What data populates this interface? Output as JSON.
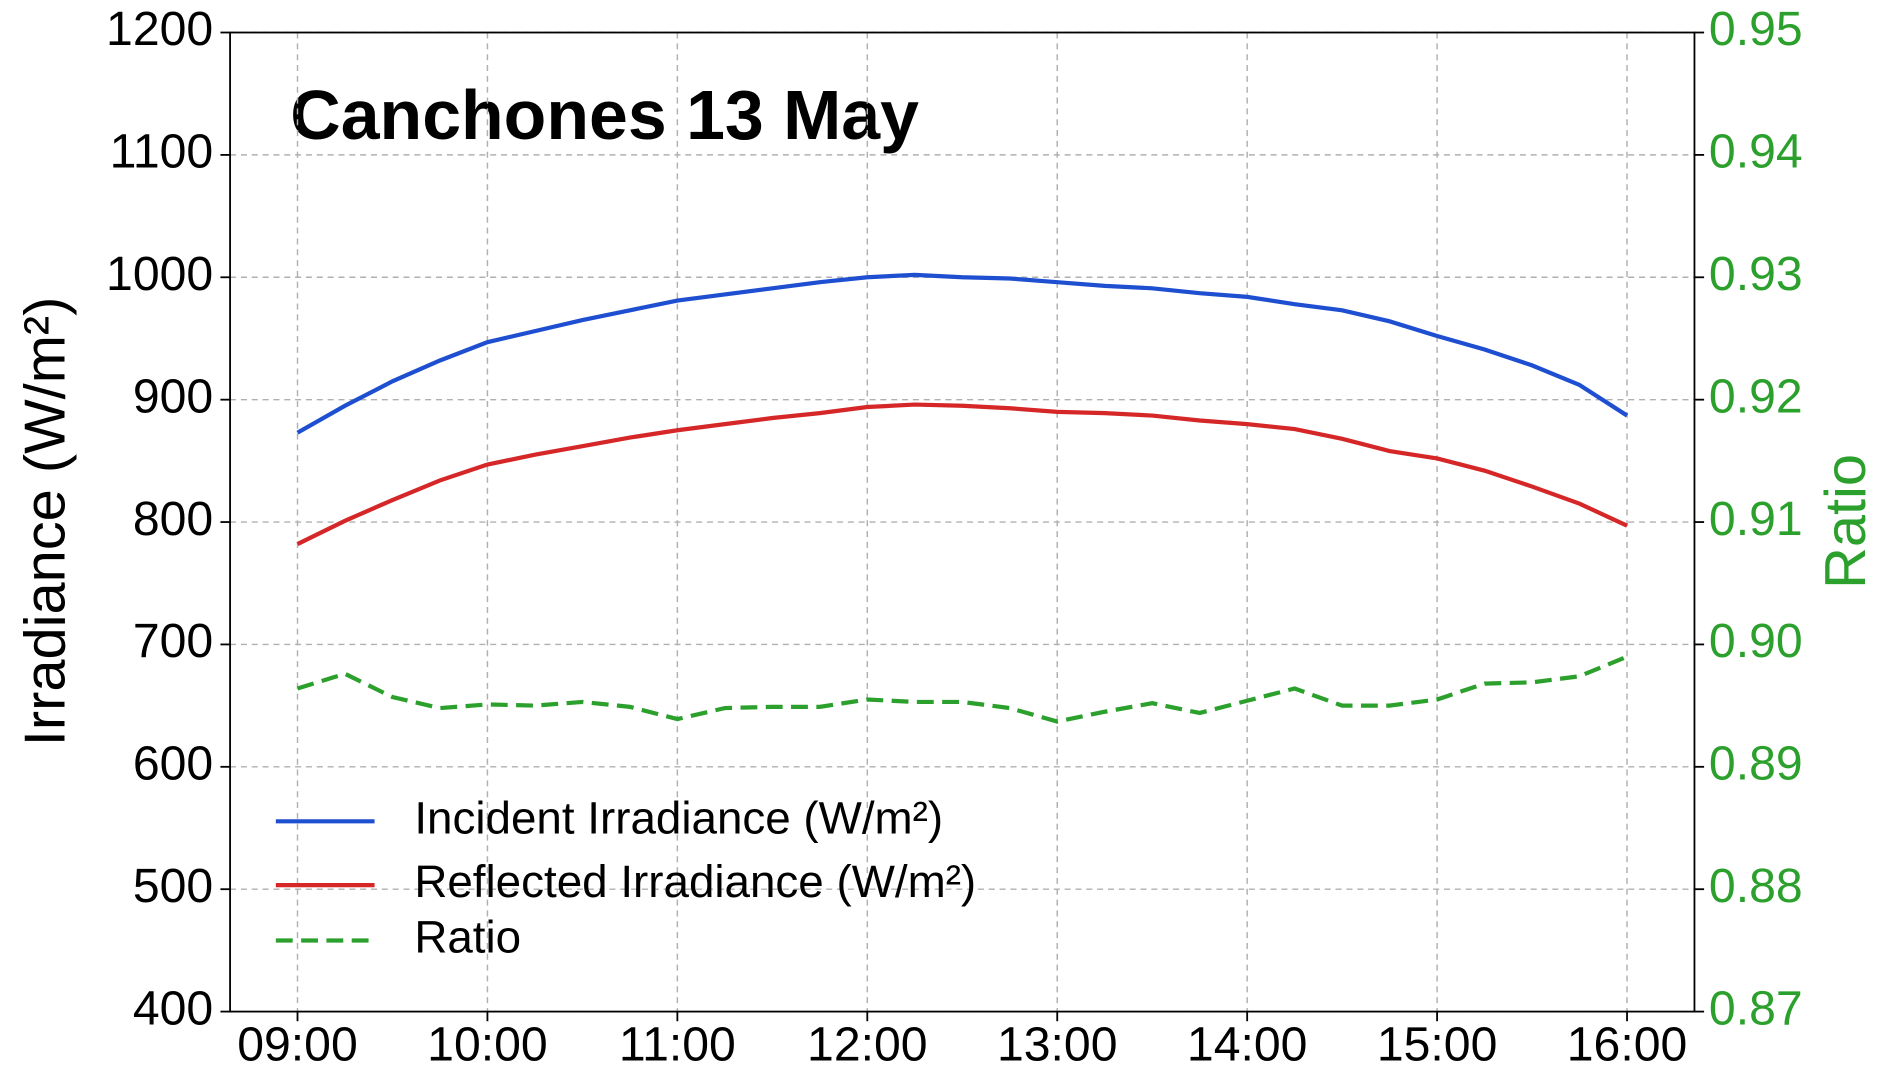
{
  "chart_data": {
    "type": "line",
    "title": "Canchones 13 May",
    "y_label": "Irradiance (W/m²)",
    "y2_label": "Ratio",
    "x": [
      9,
      9.25,
      9.5,
      9.75,
      10,
      10.25,
      10.5,
      10.75,
      11,
      11.25,
      11.5,
      11.75,
      12,
      12.25,
      12.5,
      12.75,
      13,
      13.25,
      13.5,
      13.75,
      14,
      14.25,
      14.5,
      14.75,
      15,
      15.25,
      15.5,
      15.75,
      16
    ],
    "xlim": [
      8.645,
      16.355
    ],
    "xticks": [
      {
        "value": 9,
        "label": "09:00"
      },
      {
        "value": 10,
        "label": "10:00"
      },
      {
        "value": 11,
        "label": "11:00"
      },
      {
        "value": 12,
        "label": "12:00"
      },
      {
        "value": 13,
        "label": "13:00"
      },
      {
        "value": 14,
        "label": "14:00"
      },
      {
        "value": 15,
        "label": "15:00"
      },
      {
        "value": 16,
        "label": "16:00"
      }
    ],
    "ylim": [
      400,
      1200
    ],
    "yticks": [
      400,
      500,
      600,
      700,
      800,
      900,
      1000,
      1100,
      1200
    ],
    "y2lim": [
      0.87,
      0.95
    ],
    "y2ticks": [
      0.87,
      0.88,
      0.89,
      {
        "value": 0.9,
        "label": "0.90"
      },
      0.91,
      0.92,
      0.93,
      0.94,
      0.95
    ],
    "y2_color": "#2ca02c",
    "grid": true,
    "legend": "lower left",
    "series": [
      {
        "name": "Incident Irradiance (W/m²)",
        "color": "#1f4fd1",
        "dash": false,
        "values": [
          873,
          895,
          915,
          932,
          947,
          956,
          965,
          973,
          981,
          986,
          991,
          996,
          1000,
          1002,
          1000,
          999,
          996,
          993,
          991,
          987,
          984,
          978,
          973,
          964,
          952,
          941,
          928,
          912,
          887
        ]
      },
      {
        "name": "Reflected Irradiance (W/m²)",
        "color": "#d62728",
        "dash": false,
        "values": [
          782,
          801,
          818,
          834,
          847,
          855,
          862,
          869,
          875,
          880,
          885,
          889,
          894,
          896,
          895,
          893,
          890,
          889,
          887,
          883,
          880,
          876,
          868,
          858,
          852,
          842,
          829,
          815,
          797
        ]
      },
      {
        "name": "Ratio",
        "color": "#2ca02c",
        "dash": true,
        "axis": "y2",
        "values": [
          0.8964,
          0.8976,
          0.8957,
          0.8948,
          0.8951,
          0.895,
          0.8953,
          0.8949,
          0.8939,
          0.8948,
          0.8949,
          0.8949,
          0.8955,
          0.8953,
          0.8953,
          0.8948,
          0.8937,
          0.8945,
          0.8952,
          0.8944,
          0.8954,
          0.8964,
          0.895,
          0.895,
          0.8955,
          0.8968,
          0.8969,
          0.8974,
          0.899
        ]
      }
    ]
  }
}
